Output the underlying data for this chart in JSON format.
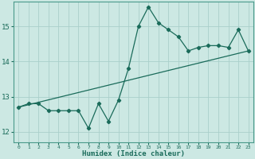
{
  "x": [
    0,
    1,
    2,
    3,
    4,
    5,
    6,
    7,
    8,
    9,
    10,
    11,
    12,
    13,
    14,
    15,
    16,
    17,
    18,
    19,
    20,
    21,
    22,
    23
  ],
  "y": [
    12.7,
    12.8,
    12.8,
    12.6,
    12.6,
    12.6,
    12.6,
    12.1,
    12.8,
    12.3,
    12.9,
    13.8,
    15.0,
    15.55,
    15.1,
    14.9,
    14.7,
    14.3,
    14.4,
    14.45,
    14.45,
    14.4,
    14.9,
    14.3
  ],
  "trend_x": [
    0,
    23
  ],
  "trend_y": [
    12.7,
    14.3
  ],
  "xlabel": "Humidex (Indice chaleur)",
  "xlim": [
    -0.5,
    23.5
  ],
  "ylim": [
    11.7,
    15.7
  ],
  "yticks": [
    12,
    13,
    14,
    15
  ],
  "xticks": [
    0,
    1,
    2,
    3,
    4,
    5,
    6,
    7,
    8,
    9,
    10,
    11,
    12,
    13,
    14,
    15,
    16,
    17,
    18,
    19,
    20,
    21,
    22,
    23
  ],
  "line_color": "#1a6b5a",
  "bg_color": "#cce8e3",
  "grid_color": "#aacfca",
  "tick_color": "#1a6b5a",
  "axis_color": "#4a9a8a"
}
